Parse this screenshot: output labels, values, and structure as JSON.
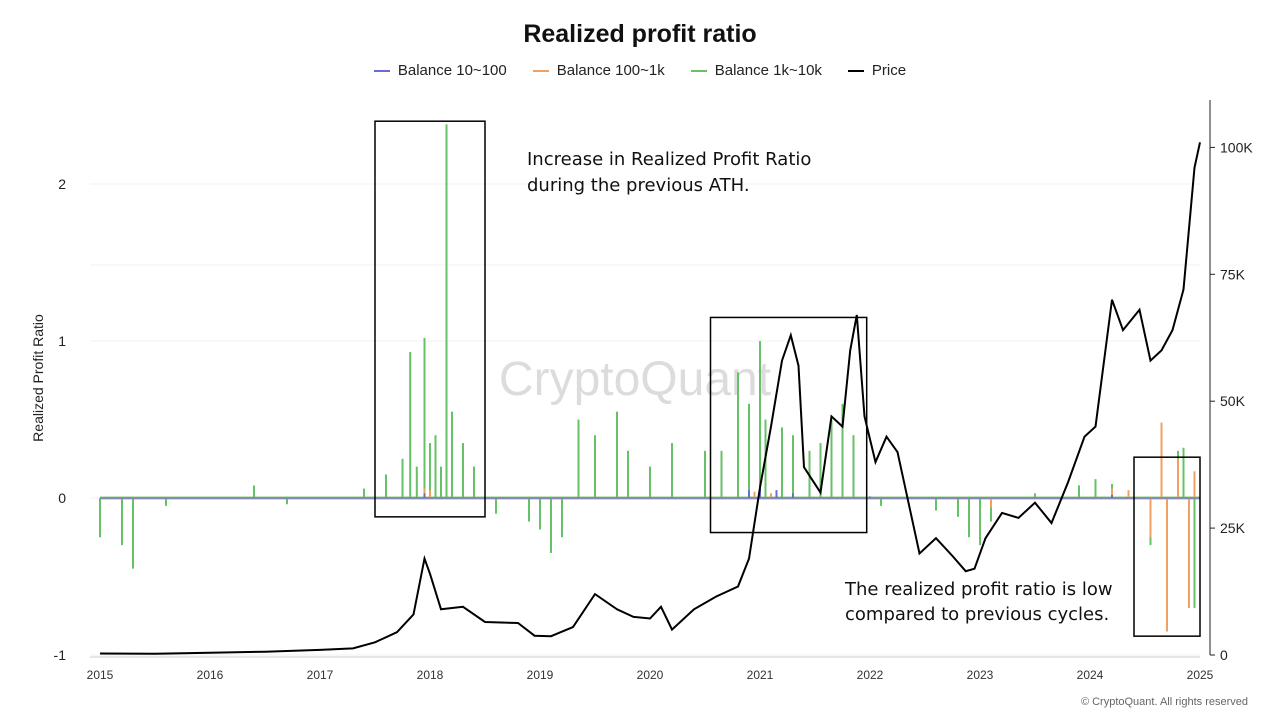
{
  "chart_data": {
    "type": "line",
    "title": "Realized profit ratio",
    "ylabel": "Realized Profit Ratio",
    "y2label": "",
    "ylim": [
      -1,
      2.5
    ],
    "y2lim": [
      0,
      105000
    ],
    "yticks": [
      "2",
      "1",
      "0",
      "-1"
    ],
    "y2ticks": [
      "100K",
      "75K",
      "50K",
      "25K",
      "0"
    ],
    "x_ticks": [
      "2015",
      "2016",
      "2017",
      "2018",
      "2019",
      "2020",
      "2021",
      "2022",
      "2023",
      "2024",
      "2025"
    ],
    "grid": true,
    "legend_position": "top-center",
    "series": [
      {
        "name": "Balance 10~100",
        "color": "#6b6bd6",
        "axis": "left",
        "spikes": [
          [
            2017.95,
            0.03
          ],
          [
            2020.9,
            0.05
          ],
          [
            2021.0,
            0.07
          ],
          [
            2021.15,
            0.05
          ],
          [
            2021.3,
            0.03
          ],
          [
            2022.0,
            0.01
          ],
          [
            2024.2,
            0.02
          ]
        ]
      },
      {
        "name": "Balance 100~1k",
        "color": "#f0a060",
        "axis": "left",
        "spikes": [
          [
            2017.95,
            0.06
          ],
          [
            2018.0,
            0.05
          ],
          [
            2020.95,
            0.04
          ],
          [
            2021.1,
            0.03
          ],
          [
            2023.1,
            -0.06
          ],
          [
            2024.2,
            0.06
          ],
          [
            2024.35,
            0.05
          ],
          [
            2024.55,
            -0.25
          ],
          [
            2024.65,
            0.48
          ],
          [
            2024.7,
            -0.85
          ],
          [
            2024.8,
            0.25
          ],
          [
            2024.9,
            -0.7
          ],
          [
            2024.95,
            0.17
          ]
        ]
      },
      {
        "name": "Balance 1k~10k",
        "color": "#66c266",
        "axis": "left",
        "spikes": [
          [
            2015.0,
            -0.25
          ],
          [
            2015.2,
            -0.3
          ],
          [
            2015.3,
            -0.45
          ],
          [
            2015.6,
            -0.05
          ],
          [
            2016.4,
            0.08
          ],
          [
            2016.7,
            -0.04
          ],
          [
            2017.4,
            0.06
          ],
          [
            2017.6,
            0.15
          ],
          [
            2017.75,
            0.25
          ],
          [
            2017.82,
            0.93
          ],
          [
            2017.88,
            0.2
          ],
          [
            2017.95,
            1.02
          ],
          [
            2018.0,
            0.35
          ],
          [
            2018.05,
            0.4
          ],
          [
            2018.1,
            0.2
          ],
          [
            2018.15,
            2.38
          ],
          [
            2018.2,
            0.55
          ],
          [
            2018.3,
            0.35
          ],
          [
            2018.4,
            0.2
          ],
          [
            2018.6,
            -0.1
          ],
          [
            2018.9,
            -0.15
          ],
          [
            2019.0,
            -0.2
          ],
          [
            2019.1,
            -0.35
          ],
          [
            2019.2,
            -0.25
          ],
          [
            2019.35,
            0.5
          ],
          [
            2019.5,
            0.4
          ],
          [
            2019.7,
            0.55
          ],
          [
            2019.8,
            0.3
          ],
          [
            2020.0,
            0.2
          ],
          [
            2020.2,
            0.35
          ],
          [
            2020.5,
            0.3
          ],
          [
            2020.65,
            0.3
          ],
          [
            2020.8,
            0.8
          ],
          [
            2020.9,
            0.6
          ],
          [
            2021.0,
            1.0
          ],
          [
            2021.05,
            0.5
          ],
          [
            2021.2,
            0.45
          ],
          [
            2021.3,
            0.4
          ],
          [
            2021.45,
            0.3
          ],
          [
            2021.55,
            0.35
          ],
          [
            2021.65,
            0.5
          ],
          [
            2021.75,
            0.6
          ],
          [
            2021.85,
            0.4
          ],
          [
            2022.1,
            -0.05
          ],
          [
            2022.6,
            -0.08
          ],
          [
            2022.8,
            -0.12
          ],
          [
            2022.9,
            -0.25
          ],
          [
            2023.0,
            -0.3
          ],
          [
            2023.1,
            -0.15
          ],
          [
            2023.5,
            0.03
          ],
          [
            2023.9,
            0.08
          ],
          [
            2024.05,
            0.12
          ],
          [
            2024.2,
            0.09
          ],
          [
            2024.55,
            -0.3
          ],
          [
            2024.7,
            -0.3
          ],
          [
            2024.8,
            0.3
          ],
          [
            2024.85,
            0.32
          ],
          [
            2024.95,
            -0.7
          ]
        ]
      },
      {
        "name": "Price",
        "color": "#000000",
        "axis": "right",
        "points": [
          [
            2015.0,
            300
          ],
          [
            2015.5,
            250
          ],
          [
            2016.0,
            430
          ],
          [
            2016.5,
            650
          ],
          [
            2017.0,
            1000
          ],
          [
            2017.3,
            1300
          ],
          [
            2017.5,
            2500
          ],
          [
            2017.7,
            4500
          ],
          [
            2017.85,
            8000
          ],
          [
            2017.95,
            19000
          ],
          [
            2018.0,
            16000
          ],
          [
            2018.1,
            9000
          ],
          [
            2018.3,
            9500
          ],
          [
            2018.5,
            6500
          ],
          [
            2018.8,
            6300
          ],
          [
            2018.95,
            3800
          ],
          [
            2019.1,
            3700
          ],
          [
            2019.3,
            5500
          ],
          [
            2019.5,
            12000
          ],
          [
            2019.7,
            9000
          ],
          [
            2019.85,
            7500
          ],
          [
            2020.0,
            7200
          ],
          [
            2020.1,
            9500
          ],
          [
            2020.2,
            5000
          ],
          [
            2020.4,
            9000
          ],
          [
            2020.6,
            11500
          ],
          [
            2020.8,
            13500
          ],
          [
            2020.9,
            19000
          ],
          [
            2021.0,
            33000
          ],
          [
            2021.1,
            45000
          ],
          [
            2021.2,
            58000
          ],
          [
            2021.28,
            63000
          ],
          [
            2021.35,
            57000
          ],
          [
            2021.4,
            37000
          ],
          [
            2021.55,
            32000
          ],
          [
            2021.65,
            47000
          ],
          [
            2021.75,
            45000
          ],
          [
            2021.82,
            60000
          ],
          [
            2021.88,
            67000
          ],
          [
            2021.95,
            47000
          ],
          [
            2022.05,
            38000
          ],
          [
            2022.15,
            43000
          ],
          [
            2022.25,
            40000
          ],
          [
            2022.35,
            30000
          ],
          [
            2022.45,
            20000
          ],
          [
            2022.6,
            23000
          ],
          [
            2022.75,
            19500
          ],
          [
            2022.87,
            16500
          ],
          [
            2022.95,
            17000
          ],
          [
            2023.05,
            23000
          ],
          [
            2023.2,
            28000
          ],
          [
            2023.35,
            27000
          ],
          [
            2023.5,
            30000
          ],
          [
            2023.65,
            26000
          ],
          [
            2023.8,
            34000
          ],
          [
            2023.95,
            43000
          ],
          [
            2024.05,
            45000
          ],
          [
            2024.2,
            70000
          ],
          [
            2024.3,
            64000
          ],
          [
            2024.45,
            68000
          ],
          [
            2024.55,
            58000
          ],
          [
            2024.65,
            60000
          ],
          [
            2024.75,
            64000
          ],
          [
            2024.85,
            72000
          ],
          [
            2024.95,
            96000
          ],
          [
            2025.0,
            101000
          ]
        ]
      }
    ],
    "annotations": [
      {
        "lines": [
          "Increase in Realized Profit Ratio",
          " during the previous ATH."
        ],
        "box_x": [
          2017.5,
          2018.5
        ],
        "box_y": [
          -0.12,
          2.4
        ]
      },
      {
        "lines": [],
        "box_x": [
          2020.55,
          2021.97
        ],
        "box_y": [
          -0.22,
          1.15
        ]
      },
      {
        "lines": [
          "The realized profit ratio is low",
          "compared to previous cycles."
        ],
        "box_x": [
          2024.4,
          2025.0
        ],
        "box_y": [
          -0.88,
          0.26
        ]
      }
    ],
    "watermark": "CryptoQuant",
    "copyright": "© CryptoQuant. All rights reserved"
  }
}
